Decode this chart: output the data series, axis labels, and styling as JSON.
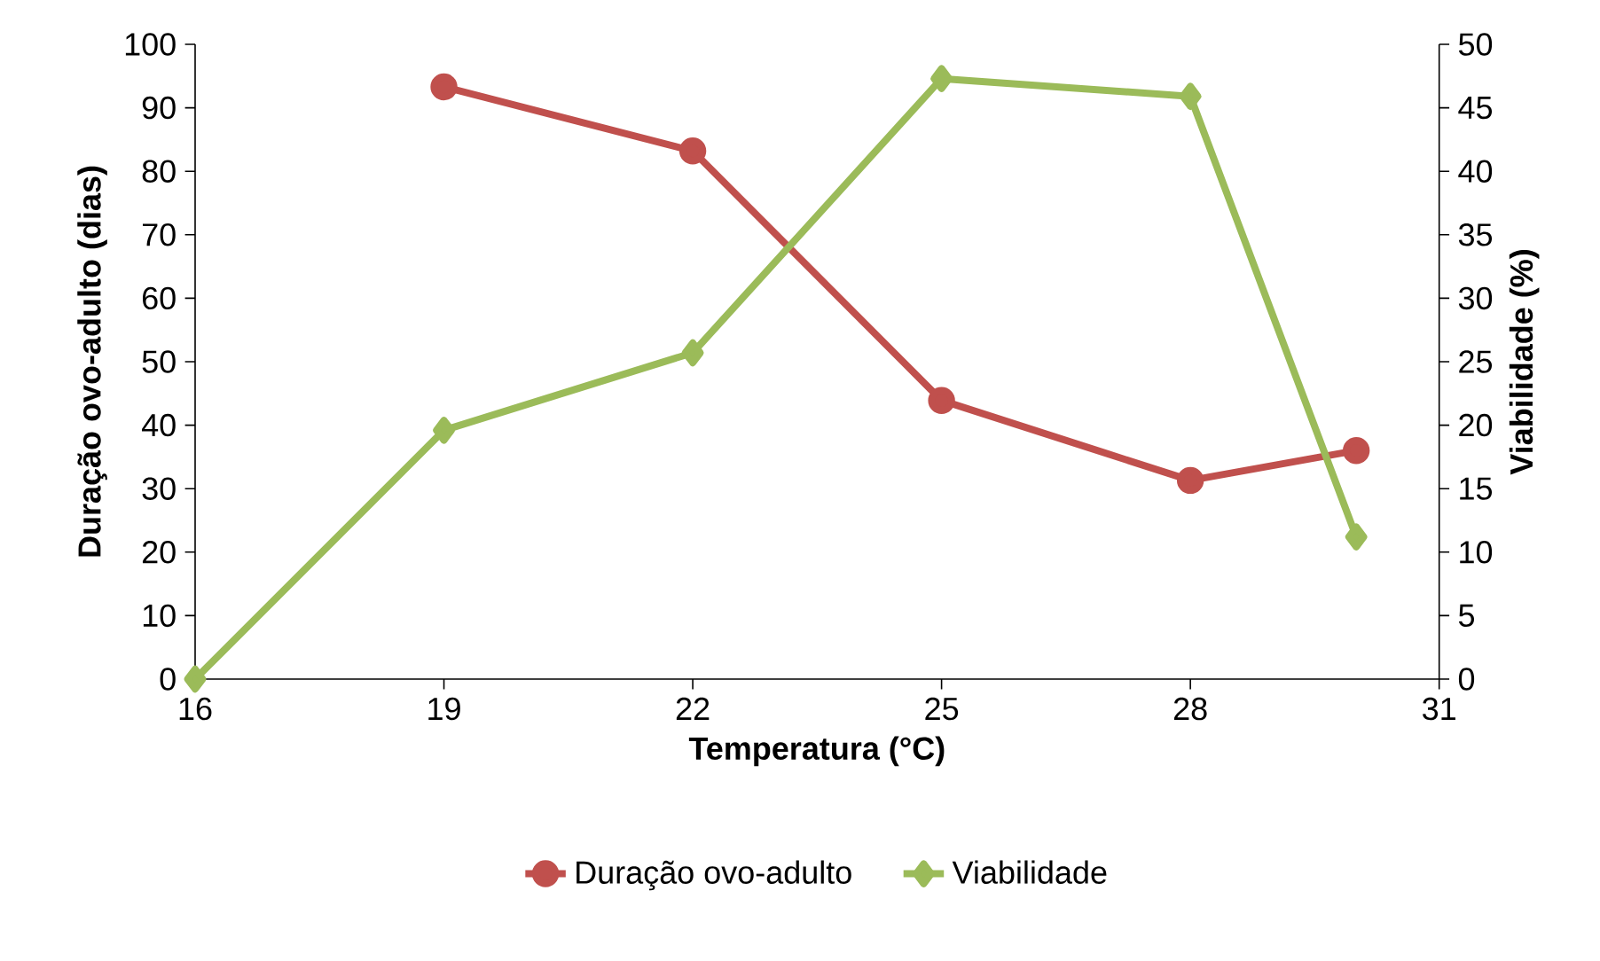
{
  "chart_data": {
    "type": "line",
    "xlabel": "Temperatura (°C)",
    "ylabel": "Duração ovo-adulto (dias)",
    "y2label": "Viabilidade (%)",
    "xlim": [
      16,
      31
    ],
    "xticks": [
      16,
      19,
      22,
      25,
      28,
      31
    ],
    "ylim": [
      0,
      100
    ],
    "yticks": [
      0,
      10,
      20,
      30,
      40,
      50,
      60,
      70,
      80,
      90,
      100
    ],
    "y2lim": [
      0,
      50
    ],
    "y2ticks": [
      0,
      5,
      10,
      15,
      20,
      25,
      30,
      35,
      40,
      45,
      50
    ],
    "grid": false,
    "legend": "bottom",
    "line_style": "solid",
    "series": [
      {
        "name": "Duração ovo-adulto",
        "color": "#c0504d",
        "marker": "circle",
        "x": [
          19,
          22,
          25,
          28,
          30
        ],
        "values": [
          93.3,
          83.2,
          43.9,
          31.3,
          36.0
        ]
      },
      {
        "name": "Viabilidade",
        "color": "#9bbb59",
        "marker": "diamond",
        "axis": "y2",
        "x": [
          16,
          19,
          22,
          25,
          28,
          30
        ],
        "values": [
          0,
          19.6,
          25.7,
          47.3,
          45.9,
          11.2
        ]
      }
    ]
  }
}
